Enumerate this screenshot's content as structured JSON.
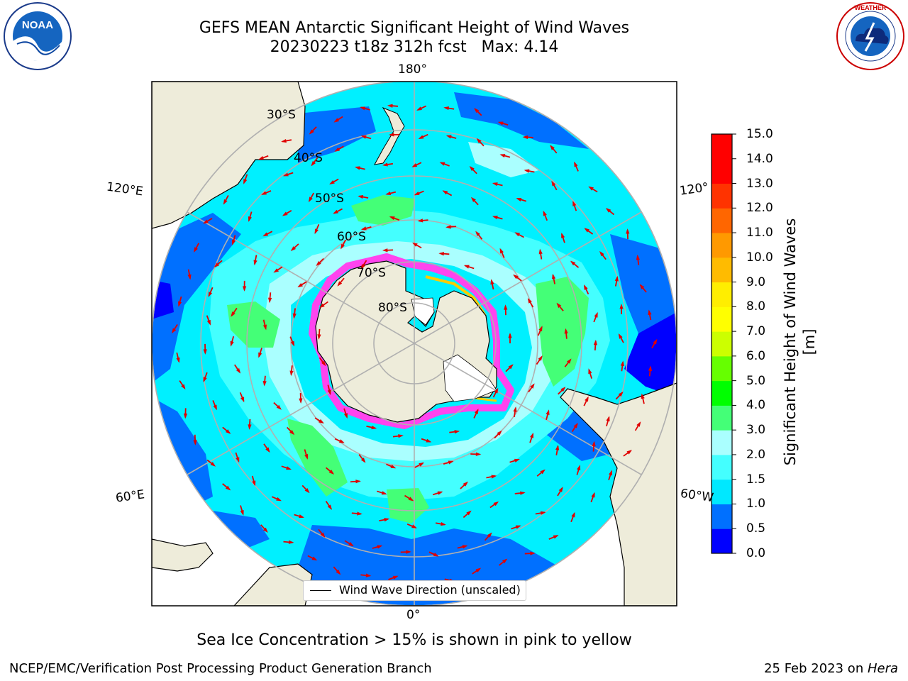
{
  "title": {
    "line1": "GEFS MEAN Antarctic Significant Height of Wind Waves",
    "line2": "20230223 t18z 312h fcst   Max: 4.14"
  },
  "logos": {
    "left": {
      "text": "NOAA",
      "ring_text": "NATIONAL OCEANIC AND ATMOSPHERIC ADMINISTRATION · U.S. DEPARTMENT OF COMMERCE"
    },
    "right": {
      "ring_text": "NATIONAL WEATHER SERVICE"
    }
  },
  "map": {
    "latitude_labels": [
      "30°S",
      "40°S",
      "50°S",
      "60°S",
      "70°S",
      "80°S"
    ],
    "longitude_labels": {
      "top": "180°",
      "bottom": "0°",
      "upper_left": "120°E",
      "upper_right": "120°",
      "lower_left": "60°E",
      "lower_right": "60°W"
    },
    "ocean_base_color": "#00f0ff",
    "land_color": "#eeecda",
    "ice_colors": [
      "#ff00ff",
      "#ffff00"
    ]
  },
  "legend": {
    "label": "Wind Wave Direction (unscaled)"
  },
  "colorbar": {
    "label": "Significant Height of Wind Waves [m]",
    "ticks": [
      "0.0",
      "0.5",
      "1.0",
      "1.5",
      "2.0",
      "3.0",
      "4.0",
      "5.0",
      "6.0",
      "7.0",
      "8.0",
      "9.0",
      "10.0",
      "11.0",
      "12.0",
      "13.0",
      "14.0",
      "15.0"
    ],
    "colors": [
      "#0000ff",
      "#0070ff",
      "#00e8ff",
      "#44ffff",
      "#aaffff",
      "#44ff77",
      "#00ff00",
      "#66ff00",
      "#ccff00",
      "#ffff00",
      "#ffee00",
      "#ffbb00",
      "#ff9900",
      "#ff6600",
      "#ff3300",
      "#ff0000",
      "#ff0000"
    ]
  },
  "sea_ice_note": "Sea Ice Concentration > 15% is shown in pink to yellow",
  "footer": {
    "left": "NCEP/EMC/Verification Post Processing Product Generation Branch",
    "right_prefix": "25 Feb 2023 on ",
    "right_italic": "Hera"
  }
}
